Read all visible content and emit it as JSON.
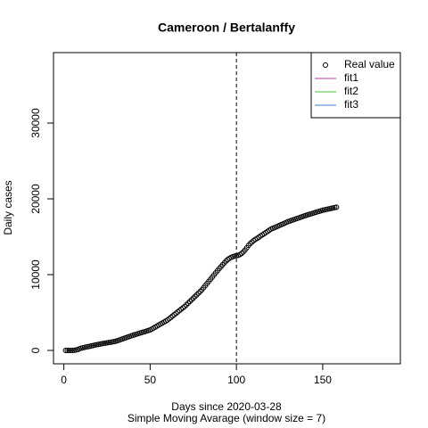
{
  "chart_data": {
    "type": "scatter",
    "title": "Cameroon / Bertalanffy",
    "x_label": "Days since 2020-03-28",
    "subtitle": "Simple Moving Avarage (window size = 7)",
    "y_label": "Daily cases",
    "xlim": [
      -6,
      195
    ],
    "ylim": [
      -1765,
      39300
    ],
    "xticks": [
      0,
      50,
      100,
      150
    ],
    "yticks": [
      0,
      10000,
      20000,
      30000
    ],
    "vline": 100,
    "series": [
      {
        "name": "Real value",
        "color": "#000000",
        "x": [
          1,
          2,
          3,
          4,
          5,
          6,
          7,
          8,
          9,
          10,
          11,
          12,
          13,
          14,
          15,
          16,
          17,
          18,
          19,
          20,
          21,
          22,
          23,
          24,
          25,
          26,
          27,
          28,
          29,
          30,
          31,
          32,
          33,
          34,
          35,
          36,
          37,
          38,
          39,
          40,
          41,
          42,
          43,
          44,
          45,
          46,
          47,
          48,
          49,
          50,
          51,
          52,
          53,
          54,
          55,
          56,
          57,
          58,
          59,
          60,
          61,
          62,
          63,
          64,
          65,
          66,
          67,
          68,
          69,
          70,
          71,
          72,
          73,
          74,
          75,
          76,
          77,
          78,
          79,
          80,
          81,
          82,
          83,
          84,
          85,
          86,
          87,
          88,
          89,
          90,
          91,
          92,
          93,
          94,
          95,
          96,
          97,
          98,
          99,
          100,
          101,
          102,
          103,
          104,
          105,
          106,
          107,
          108,
          109,
          110,
          111,
          112,
          113,
          114,
          115,
          116,
          117,
          118,
          119,
          120,
          121,
          122,
          123,
          124,
          125,
          126,
          127,
          128,
          129,
          130,
          131,
          132,
          133,
          134,
          135,
          136,
          137,
          138,
          139,
          140,
          141,
          142,
          143,
          144,
          145,
          146,
          147,
          148,
          149,
          150,
          151,
          152,
          153,
          154,
          155,
          156,
          157,
          158
        ],
        "values": [
          0,
          0,
          0,
          0,
          0,
          20,
          60,
          120,
          200,
          300,
          350,
          400,
          450,
          500,
          550,
          600,
          650,
          700,
          750,
          800,
          840,
          880,
          920,
          960,
          1000,
          1040,
          1080,
          1120,
          1160,
          1200,
          1280,
          1360,
          1440,
          1520,
          1600,
          1680,
          1760,
          1840,
          1920,
          2000,
          2070,
          2140,
          2210,
          2280,
          2350,
          2420,
          2490,
          2560,
          2630,
          2700,
          2830,
          2960,
          3090,
          3220,
          3350,
          3480,
          3610,
          3740,
          3870,
          4000,
          4180,
          4360,
          4540,
          4720,
          4900,
          5080,
          5260,
          5440,
          5620,
          5800,
          6020,
          6240,
          6460,
          6680,
          6900,
          7120,
          7340,
          7560,
          7780,
          8000,
          8280,
          8560,
          8840,
          9120,
          9400,
          9680,
          9960,
          10240,
          10520,
          10800,
          11050,
          11300,
          11550,
          11800,
          12000,
          12150,
          12280,
          12380,
          12450,
          12500,
          12550,
          12650,
          12800,
          13000,
          13250,
          13550,
          13850,
          14100,
          14300,
          14500,
          14650,
          14800,
          14950,
          15100,
          15250,
          15400,
          15550,
          15700,
          15850,
          16000,
          16100,
          16200,
          16300,
          16400,
          16500,
          16600,
          16700,
          16800,
          16900,
          17000,
          17080,
          17160,
          17240,
          17320,
          17400,
          17480,
          17560,
          17640,
          17720,
          17800,
          17870,
          17940,
          18010,
          18080,
          18150,
          18220,
          18290,
          18360,
          18430,
          18500,
          18550,
          18600,
          18650,
          18700,
          18750,
          18800,
          18850,
          18900
        ]
      }
    ],
    "legend": [
      {
        "name": "Real value",
        "symbol": "circle",
        "color": "#000000"
      },
      {
        "name": "fit1",
        "symbol": "line",
        "color": "#b03fa0"
      },
      {
        "name": "fit2",
        "symbol": "line",
        "color": "#4fbf3f"
      },
      {
        "name": "fit3",
        "symbol": "line",
        "color": "#3f7fd0"
      }
    ],
    "legend_position": "top-right"
  }
}
